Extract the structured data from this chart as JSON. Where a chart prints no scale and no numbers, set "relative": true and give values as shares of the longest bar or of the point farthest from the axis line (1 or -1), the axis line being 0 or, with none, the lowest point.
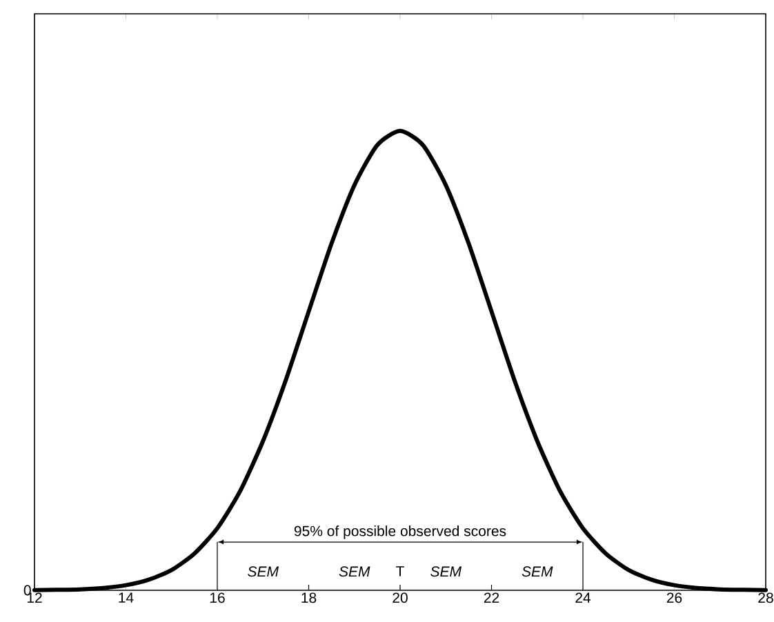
{
  "chart_data": {
    "type": "line",
    "relative": true,
    "x": [
      12,
      12.5,
      13,
      13.5,
      14,
      14.5,
      15,
      15.5,
      16,
      16.5,
      17,
      17.5,
      18,
      18.5,
      19,
      19.5,
      20,
      20.5,
      21,
      21.5,
      22,
      22.5,
      23,
      23.5,
      24,
      24.5,
      25,
      25.5,
      26,
      26.5,
      27,
      27.5,
      28
    ],
    "series": [
      {
        "color": "#000000",
        "values": [
          0.0003,
          0.001,
          0.002,
          0.005,
          0.011,
          0.023,
          0.044,
          0.08,
          0.135,
          0.216,
          0.325,
          0.458,
          0.607,
          0.755,
          0.882,
          0.969,
          1,
          0.969,
          0.882,
          0.755,
          0.607,
          0.458,
          0.325,
          0.216,
          0.135,
          0.08,
          0.044,
          0.023,
          0.011,
          0.005,
          0.002,
          0.001,
          0.0003
        ]
      }
    ],
    "xlim": [
      12,
      28
    ],
    "xticks": [
      12,
      14,
      16,
      18,
      20,
      22,
      24,
      26,
      28
    ],
    "marker": "none",
    "line_style": "solid",
    "grid": false,
    "legend": false,
    "annotations": [
      "0",
      "95% of possible observed scores",
      "SEM",
      "SEM",
      "T",
      "SEM",
      "SEM"
    ]
  }
}
